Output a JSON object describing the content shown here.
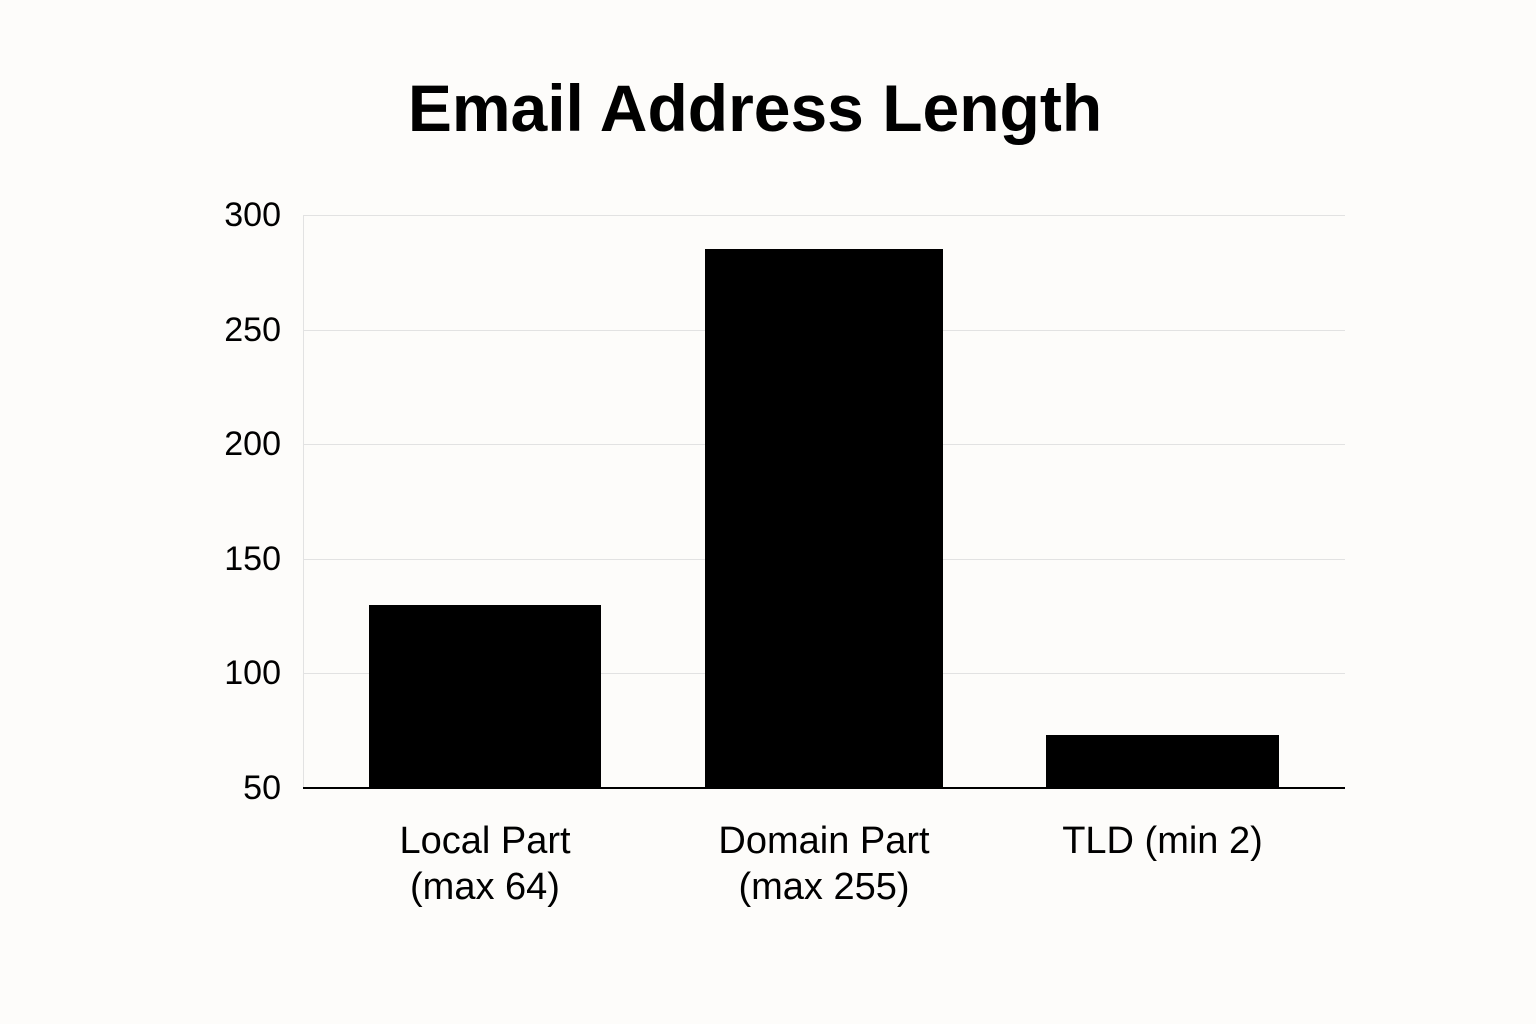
{
  "chart_data": {
    "type": "bar",
    "title": "Email Address Length",
    "xlabel": "",
    "ylabel": "",
    "categories": [
      "Local Part (max 64)",
      "Domain Part (max 255)",
      "TLD (min 2)"
    ],
    "category_lines": [
      [
        "Local Part",
        "(max 64)"
      ],
      [
        "Domain Part",
        "(max 255)"
      ],
      [
        "TLD (min 2)",
        ""
      ]
    ],
    "values": [
      130,
      285,
      73
    ],
    "ylim": [
      50,
      300
    ],
    "yticks": [
      300,
      250,
      200,
      150,
      100,
      50
    ],
    "grid": true,
    "legend": null,
    "bar_color": "#000000",
    "grid_color": "#e2e2e2",
    "background": "#fdfcfa"
  }
}
